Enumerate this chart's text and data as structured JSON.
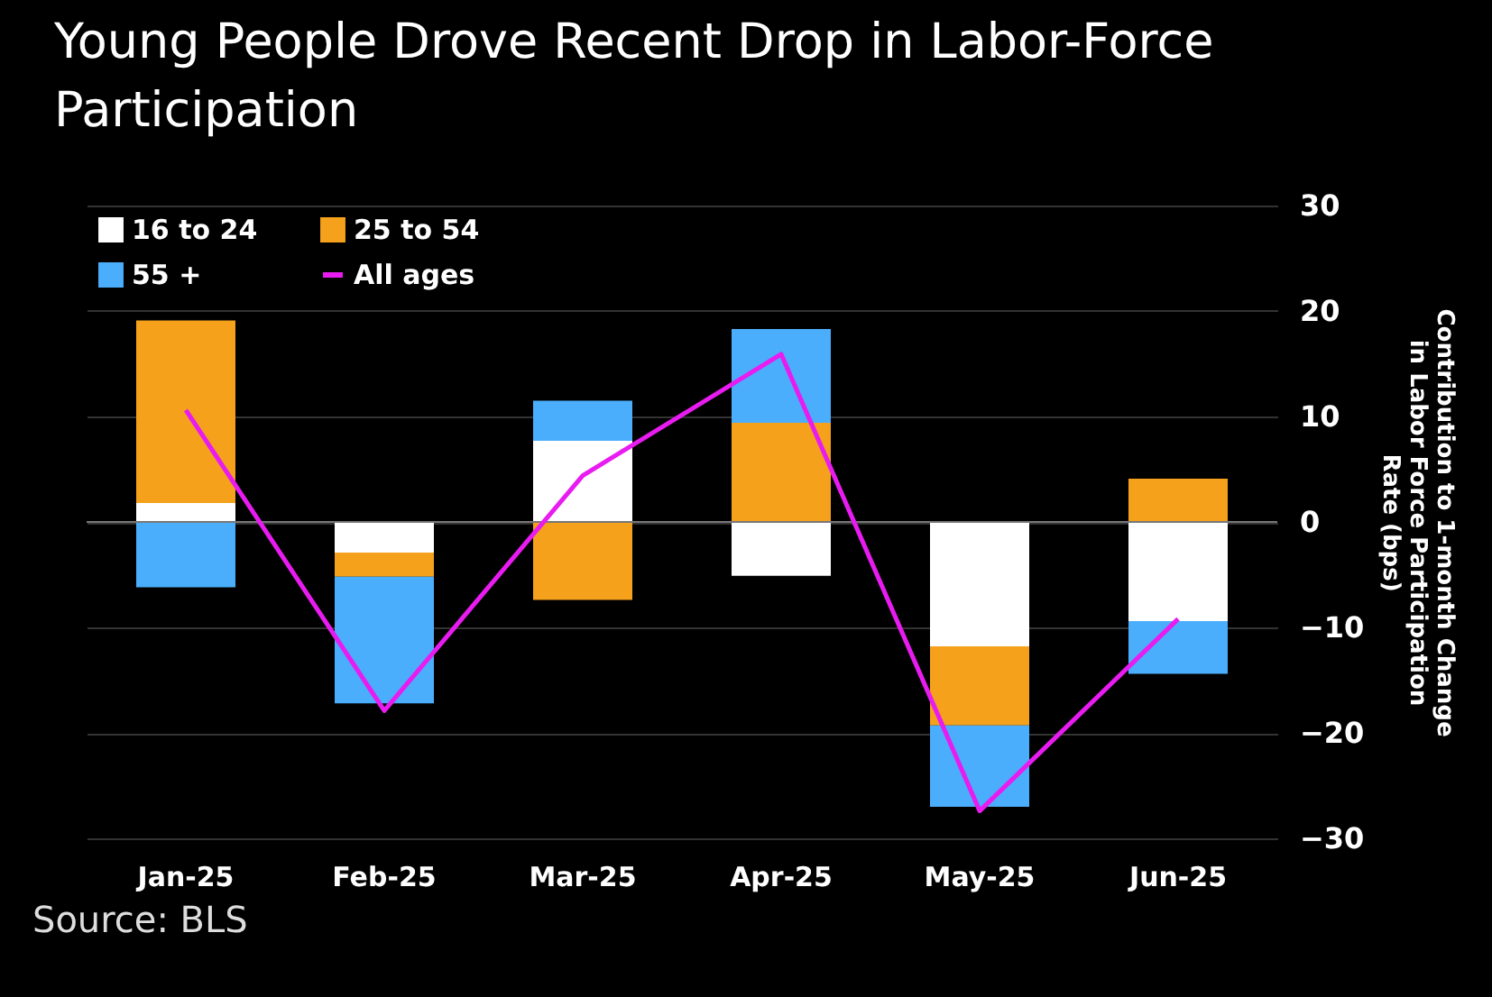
{
  "chart_data": {
    "type": "bar",
    "title": "Young People Drove Recent Drop in Labor-Force Participation",
    "ylabel": "Contribution to 1-month Change in Labor Force Participation Rate (bps)",
    "annotations": [
      "Source: BLS"
    ],
    "categories": [
      "Jan-25",
      "Feb-25",
      "Mar-25",
      "Apr-25",
      "May-25",
      "Jun-25"
    ],
    "stacked": true,
    "grid": "y",
    "legend": "top left",
    "ylim": [
      -30,
      30
    ],
    "yticks": [
      -30,
      -20,
      -10,
      0,
      10,
      20,
      30
    ],
    "series": [
      {
        "name": "16 to 24",
        "color": "#ffffff",
        "values": [
          1.8,
          -2.9,
          7.7,
          -5.1,
          -11.8,
          -9.4
        ]
      },
      {
        "name": "25 to 54",
        "color": "#f5a11c",
        "values": [
          17.3,
          -2.3,
          -7.4,
          9.4,
          -7.5,
          4.1
        ]
      },
      {
        "name": "55 +",
        "color": "#4aaefc",
        "values": [
          -6.2,
          -12.0,
          3.8,
          8.9,
          -7.7,
          -5.0
        ]
      },
      {
        "name": "All ages",
        "type": "line",
        "color": "#e81cf0",
        "values": [
          10.6,
          -17.9,
          4.4,
          15.9,
          -27.4,
          -9.2
        ]
      }
    ]
  }
}
